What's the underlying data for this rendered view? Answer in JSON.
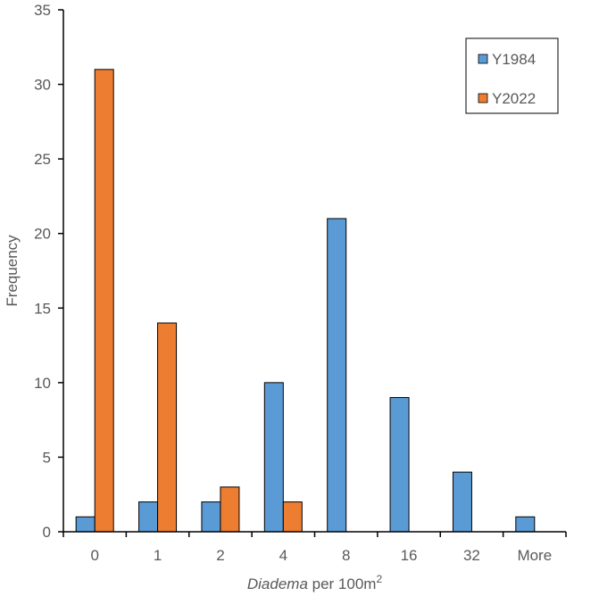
{
  "chart_data": {
    "type": "bar",
    "categories": [
      "0",
      "1",
      "2",
      "4",
      "8",
      "16",
      "32",
      "More"
    ],
    "series": [
      {
        "name": "Y1984",
        "values": [
          1,
          2,
          2,
          10,
          21,
          9,
          4,
          1
        ],
        "color": "#5B9BD5"
      },
      {
        "name": "Y2022",
        "values": [
          31,
          14,
          3,
          2,
          0,
          0,
          0,
          0
        ],
        "color": "#ED7D31"
      }
    ],
    "ylabel": "Frequency",
    "xlabel": {
      "italic": "Diadema",
      "rest": " per 100m",
      "superscript": "2"
    },
    "ylim": [
      0,
      35
    ],
    "yticks": [
      0,
      5,
      10,
      15,
      20,
      25,
      30,
      35
    ],
    "grid": false,
    "legend_position": "top-right"
  }
}
